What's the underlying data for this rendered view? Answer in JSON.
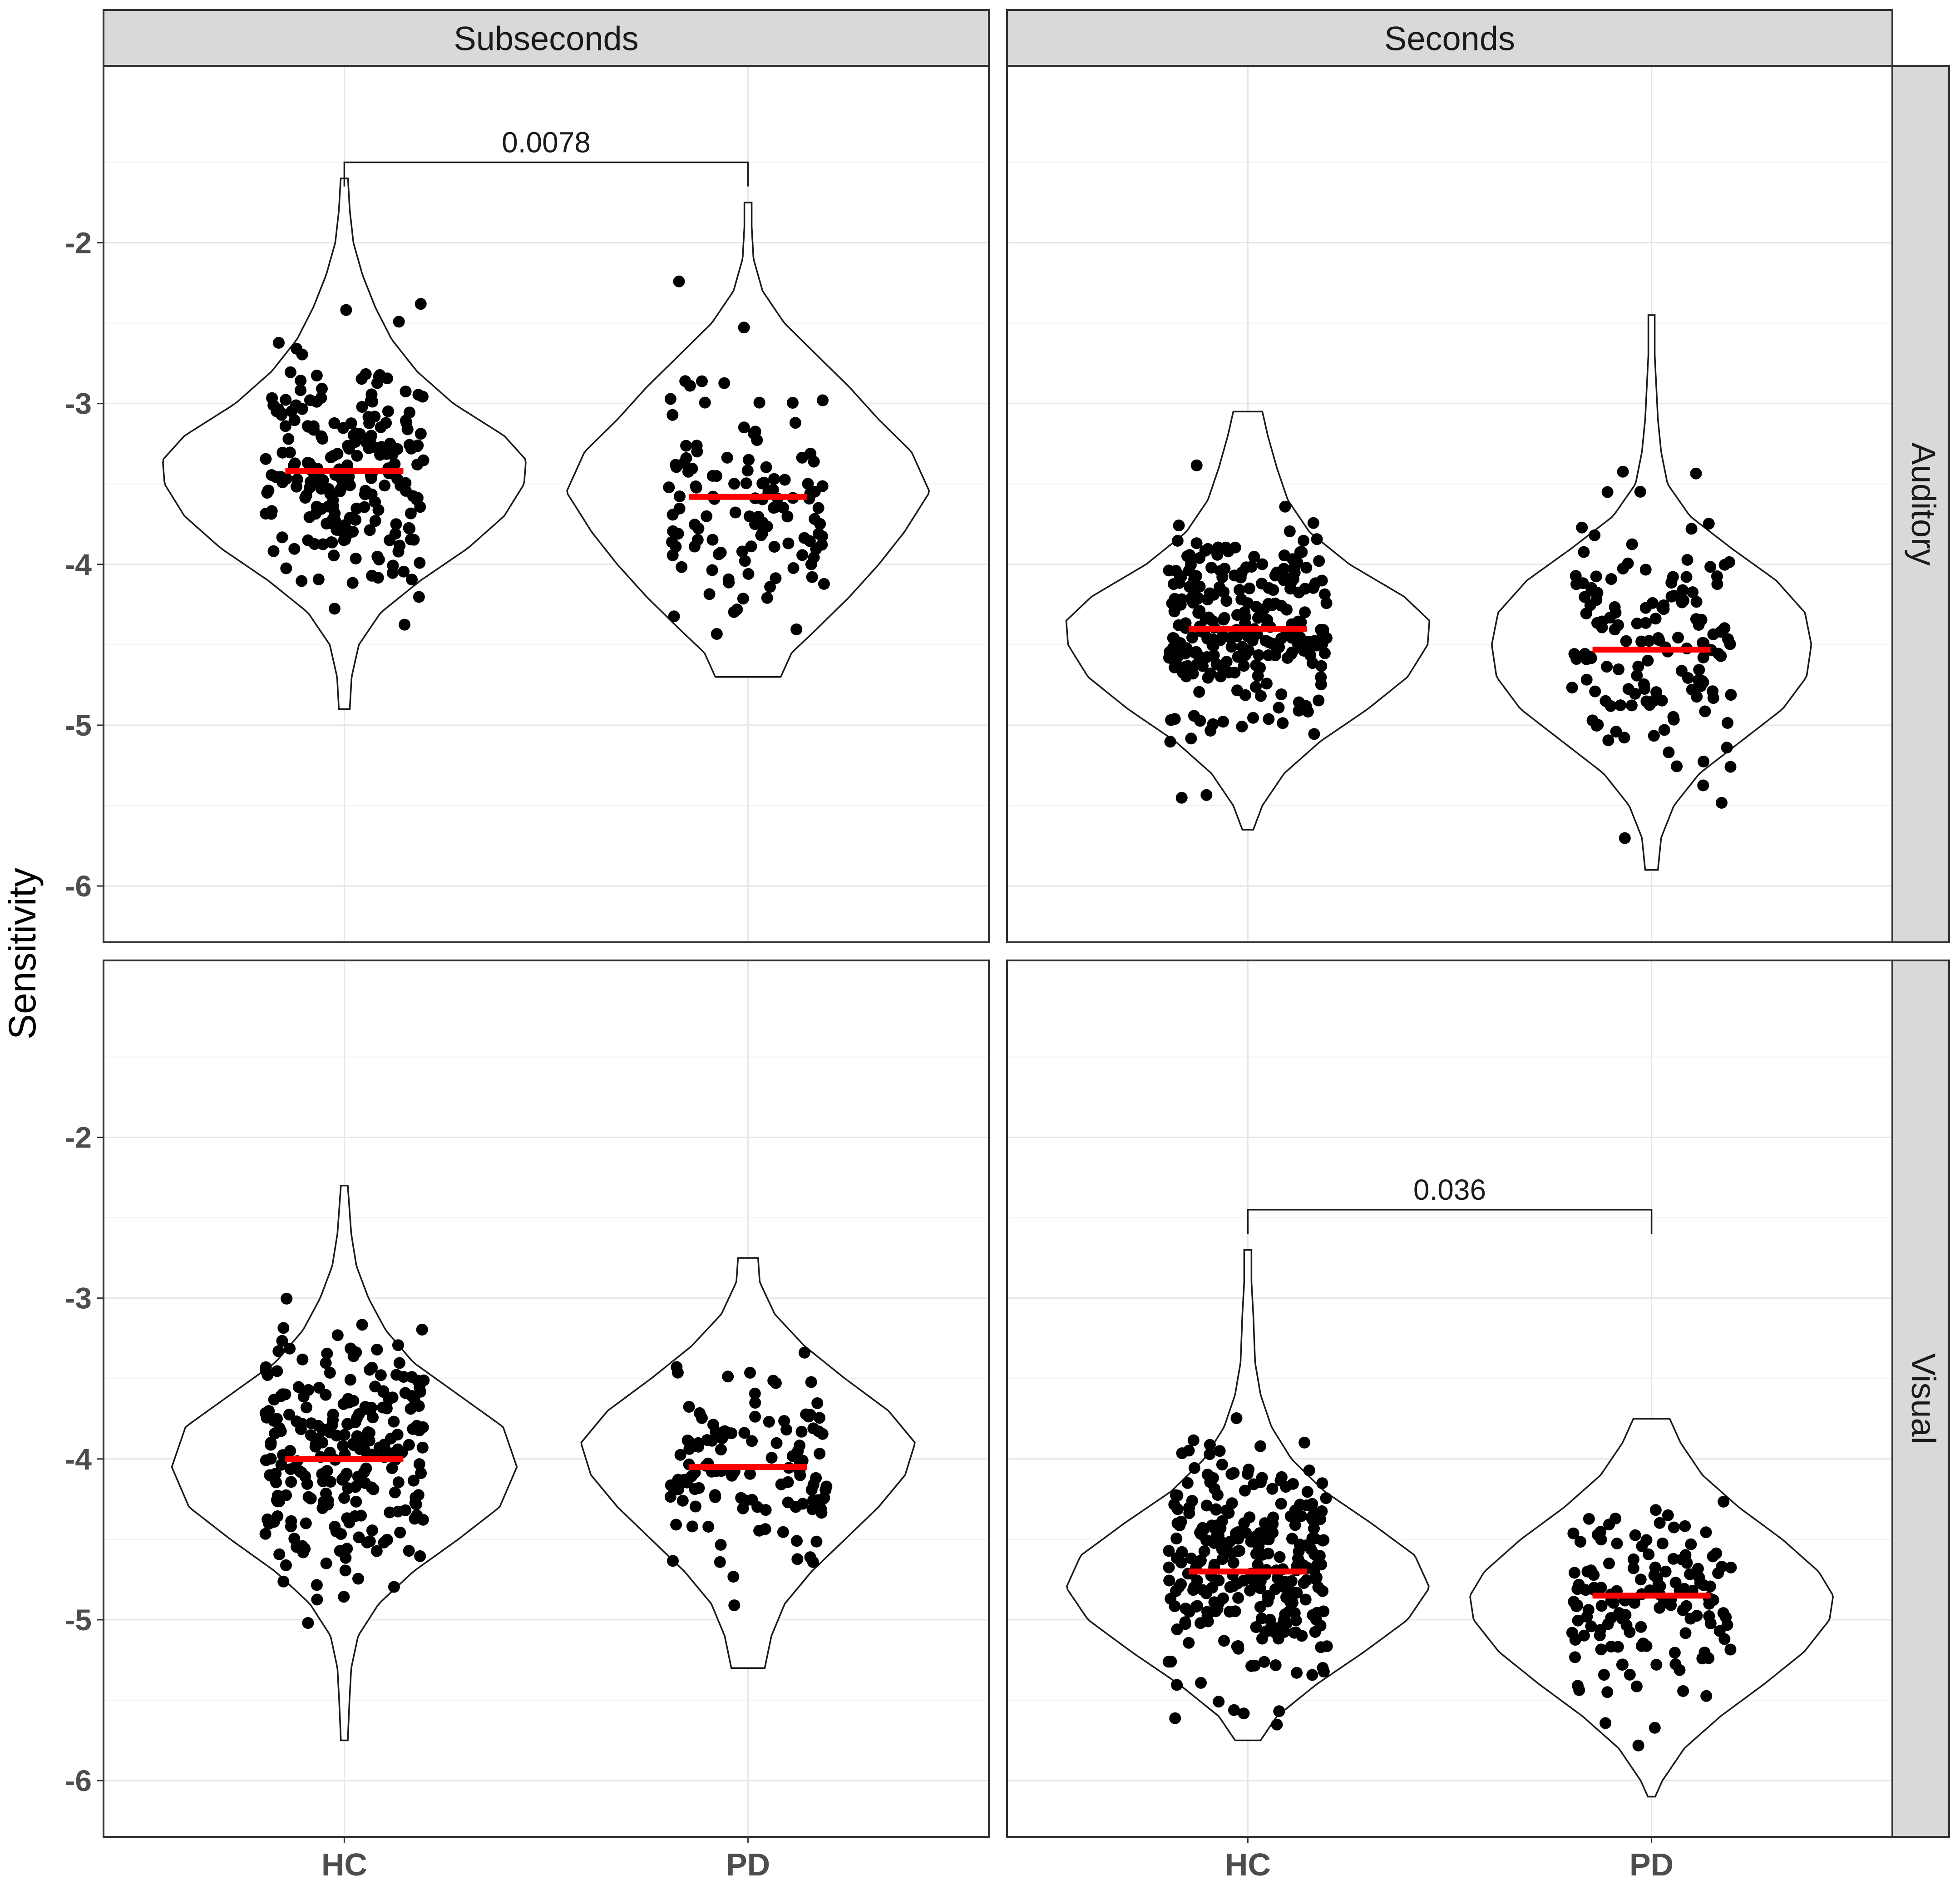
{
  "chart_data": {
    "type": "violin",
    "ylabel": "Sensitivity",
    "xlabel": "",
    "ylim": [
      -6.35,
      -0.9
    ],
    "y_ticks": [
      -2,
      -3,
      -4,
      -5,
      -6
    ],
    "y_tick_labels": [
      "-2",
      "-3",
      "-4",
      "-5",
      "-6"
    ],
    "x_categories": [
      "HC",
      "PD"
    ],
    "columns": [
      "Subseconds",
      "Seconds"
    ],
    "rows": [
      "Auditory",
      "Visual"
    ],
    "grid": true,
    "colors": {
      "median": "#ff0000",
      "point": "#000000",
      "strip": "#d9d9d9",
      "grid": "#e6e6e6"
    },
    "panels": [
      {
        "column": "Subseconds",
        "row": "Auditory",
        "groups": [
          {
            "name": "HC",
            "median": -3.42,
            "min": -4.9,
            "max": -1.6,
            "n": 220,
            "violin_width": 1.0,
            "profile": [
              [
                -4.9,
                0.03
              ],
              [
                -4.7,
                0.04
              ],
              [
                -4.5,
                0.08
              ],
              [
                -4.3,
                0.2
              ],
              [
                -4.1,
                0.42
              ],
              [
                -3.9,
                0.68
              ],
              [
                -3.7,
                0.88
              ],
              [
                -3.5,
                0.99
              ],
              [
                -3.35,
                1.0
              ],
              [
                -3.2,
                0.88
              ],
              [
                -3.0,
                0.6
              ],
              [
                -2.8,
                0.4
              ],
              [
                -2.6,
                0.26
              ],
              [
                -2.4,
                0.17
              ],
              [
                -2.2,
                0.1
              ],
              [
                -2.0,
                0.05
              ],
              [
                -1.8,
                0.03
              ],
              [
                -1.6,
                0.02
              ]
            ]
          },
          {
            "name": "PD",
            "median": -3.58,
            "min": -4.7,
            "max": -1.75,
            "n": 120,
            "violin_width": 1.0,
            "profile": [
              [
                -4.7,
                0.18
              ],
              [
                -4.55,
                0.24
              ],
              [
                -4.4,
                0.38
              ],
              [
                -4.2,
                0.56
              ],
              [
                -4.0,
                0.72
              ],
              [
                -3.8,
                0.86
              ],
              [
                -3.55,
                1.0
              ],
              [
                -3.3,
                0.9
              ],
              [
                -3.1,
                0.72
              ],
              [
                -2.9,
                0.56
              ],
              [
                -2.7,
                0.38
              ],
              [
                -2.5,
                0.2
              ],
              [
                -2.3,
                0.08
              ],
              [
                -2.1,
                0.03
              ],
              [
                -1.9,
                0.02
              ],
              [
                -1.75,
                0.02
              ]
            ]
          }
        ],
        "significance": {
          "label": "0.0078",
          "y": -1.5,
          "drop": -1.65
        }
      },
      {
        "column": "Seconds",
        "row": "Auditory",
        "groups": [
          {
            "name": "HC",
            "median": -4.4,
            "min": -5.65,
            "max": -3.05,
            "n": 260,
            "violin_width": 1.0,
            "profile": [
              [
                -5.65,
                0.03
              ],
              [
                -5.5,
                0.08
              ],
              [
                -5.3,
                0.2
              ],
              [
                -5.1,
                0.4
              ],
              [
                -4.9,
                0.66
              ],
              [
                -4.7,
                0.88
              ],
              [
                -4.5,
                0.99
              ],
              [
                -4.35,
                1.0
              ],
              [
                -4.2,
                0.86
              ],
              [
                -4.0,
                0.56
              ],
              [
                -3.8,
                0.34
              ],
              [
                -3.6,
                0.22
              ],
              [
                -3.4,
                0.16
              ],
              [
                -3.2,
                0.11
              ],
              [
                -3.05,
                0.08
              ]
            ]
          },
          {
            "name": "PD",
            "median": -4.53,
            "min": -5.9,
            "max": -2.45,
            "n": 140,
            "violin_width": 0.88,
            "profile": [
              [
                -5.9,
                0.04
              ],
              [
                -5.7,
                0.06
              ],
              [
                -5.5,
                0.14
              ],
              [
                -5.3,
                0.3
              ],
              [
                -5.1,
                0.56
              ],
              [
                -4.9,
                0.82
              ],
              [
                -4.7,
                0.97
              ],
              [
                -4.5,
                1.0
              ],
              [
                -4.3,
                0.96
              ],
              [
                -4.1,
                0.78
              ],
              [
                -3.9,
                0.5
              ],
              [
                -3.7,
                0.24
              ],
              [
                -3.5,
                0.1
              ],
              [
                -3.3,
                0.06
              ],
              [
                -3.1,
                0.04
              ],
              [
                -2.9,
                0.03
              ],
              [
                -2.7,
                0.02
              ],
              [
                -2.45,
                0.02
              ]
            ]
          }
        ]
      },
      {
        "column": "Subseconds",
        "row": "Visual",
        "groups": [
          {
            "name": "HC",
            "median": -4.0,
            "min": -5.75,
            "max": -2.3,
            "n": 240,
            "violin_width": 0.95,
            "profile": [
              [
                -5.75,
                0.02
              ],
              [
                -5.5,
                0.03
              ],
              [
                -5.3,
                0.04
              ],
              [
                -5.1,
                0.08
              ],
              [
                -4.9,
                0.2
              ],
              [
                -4.7,
                0.4
              ],
              [
                -4.5,
                0.66
              ],
              [
                -4.3,
                0.9
              ],
              [
                -4.05,
                1.0
              ],
              [
                -3.8,
                0.92
              ],
              [
                -3.6,
                0.66
              ],
              [
                -3.4,
                0.4
              ],
              [
                -3.2,
                0.24
              ],
              [
                -3.0,
                0.14
              ],
              [
                -2.8,
                0.07
              ],
              [
                -2.6,
                0.04
              ],
              [
                -2.3,
                0.02
              ]
            ]
          },
          {
            "name": "PD",
            "median": -4.05,
            "min": -5.3,
            "max": -2.75,
            "n": 120,
            "violin_width": 0.92,
            "profile": [
              [
                -5.3,
                0.1
              ],
              [
                -5.1,
                0.14
              ],
              [
                -4.9,
                0.22
              ],
              [
                -4.7,
                0.38
              ],
              [
                -4.5,
                0.58
              ],
              [
                -4.3,
                0.78
              ],
              [
                -4.1,
                0.94
              ],
              [
                -3.9,
                1.0
              ],
              [
                -3.7,
                0.84
              ],
              [
                -3.5,
                0.58
              ],
              [
                -3.3,
                0.34
              ],
              [
                -3.1,
                0.16
              ],
              [
                -2.9,
                0.07
              ],
              [
                -2.75,
                0.06
              ]
            ]
          }
        ]
      },
      {
        "column": "Seconds",
        "row": "Visual",
        "groups": [
          {
            "name": "HC",
            "median": -4.7,
            "min": -5.75,
            "max": -2.7,
            "n": 270,
            "violin_width": 1.0,
            "profile": [
              [
                -5.75,
                0.07
              ],
              [
                -5.6,
                0.16
              ],
              [
                -5.4,
                0.38
              ],
              [
                -5.2,
                0.64
              ],
              [
                -5.0,
                0.88
              ],
              [
                -4.8,
                1.0
              ],
              [
                -4.6,
                0.92
              ],
              [
                -4.4,
                0.68
              ],
              [
                -4.2,
                0.42
              ],
              [
                -4.0,
                0.24
              ],
              [
                -3.8,
                0.13
              ],
              [
                -3.6,
                0.07
              ],
              [
                -3.4,
                0.04
              ],
              [
                -3.1,
                0.03
              ],
              [
                -2.9,
                0.02
              ],
              [
                -2.7,
                0.02
              ]
            ]
          },
          {
            "name": "PD",
            "median": -4.85,
            "min": -6.1,
            "max": -3.75,
            "n": 140,
            "violin_width": 1.0,
            "profile": [
              [
                -6.1,
                0.02
              ],
              [
                -6.0,
                0.06
              ],
              [
                -5.8,
                0.18
              ],
              [
                -5.6,
                0.38
              ],
              [
                -5.4,
                0.62
              ],
              [
                -5.2,
                0.84
              ],
              [
                -5.0,
                0.98
              ],
              [
                -4.85,
                1.0
              ],
              [
                -4.7,
                0.92
              ],
              [
                -4.5,
                0.72
              ],
              [
                -4.3,
                0.48
              ],
              [
                -4.1,
                0.28
              ],
              [
                -3.9,
                0.16
              ],
              [
                -3.75,
                0.1
              ]
            ]
          }
        ],
        "significance": {
          "label": "0.036",
          "y": -2.45,
          "drop": -2.6
        }
      }
    ]
  }
}
